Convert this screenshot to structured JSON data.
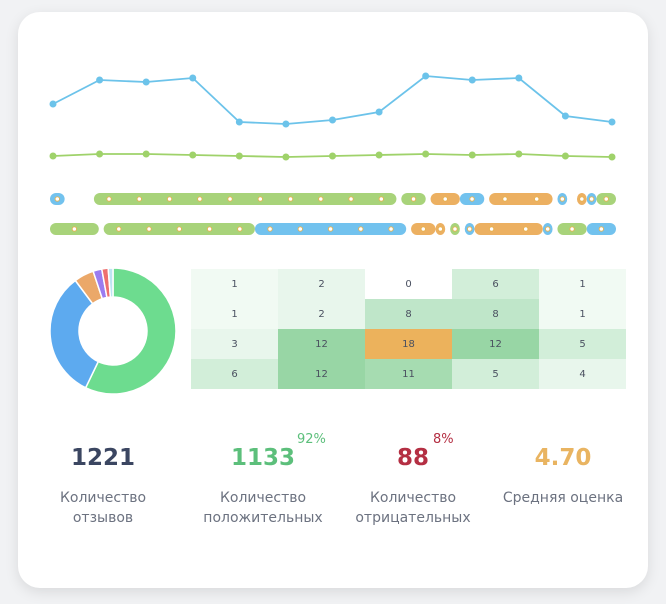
{
  "chart_data": [
    {
      "type": "line",
      "series": [
        {
          "values": [
            5.4,
            6.6,
            6.5,
            6.7,
            4.5,
            4.4,
            4.6,
            5.0,
            6.8,
            6.6,
            6.7,
            4.8,
            4.5
          ],
          "color": "#6cc3ea"
        },
        {
          "values": [
            2.8,
            2.9,
            2.9,
            2.85,
            2.8,
            2.75,
            2.8,
            2.85,
            2.9,
            2.85,
            2.9,
            2.8,
            2.75
          ],
          "color": "#9fd26a"
        }
      ],
      "ylim": [
        0,
        8
      ],
      "grid": false
    },
    {
      "type": "timeline",
      "tracks": [
        {
          "segments": [
            {
              "start": 0,
              "end": 3,
              "kind": "neutral"
            },
            {
              "start": 9,
              "end": 71,
              "kind": "positive"
            },
            {
              "start": 72,
              "end": 77,
              "kind": "positive"
            },
            {
              "start": 78,
              "end": 84,
              "kind": "average"
            },
            {
              "start": 84,
              "end": 89,
              "kind": "neutral"
            },
            {
              "start": 90,
              "end": 103,
              "kind": "average"
            },
            {
              "start": 104,
              "end": 106,
              "kind": "neutral"
            },
            {
              "start": 108,
              "end": 110,
              "kind": "average"
            },
            {
              "start": 110,
              "end": 112,
              "kind": "neutral"
            },
            {
              "start": 112,
              "end": 116,
              "kind": "positive"
            }
          ]
        },
        {
          "segments": [
            {
              "start": 0,
              "end": 10,
              "kind": "positive"
            },
            {
              "start": 11,
              "end": 42,
              "kind": "positive"
            },
            {
              "start": 42,
              "end": 73,
              "kind": "neutral"
            },
            {
              "start": 74,
              "end": 79,
              "kind": "average"
            },
            {
              "start": 79,
              "end": 81,
              "kind": "average"
            },
            {
              "start": 82,
              "end": 84,
              "kind": "positive"
            },
            {
              "start": 85,
              "end": 87,
              "kind": "neutral"
            },
            {
              "start": 87,
              "end": 101,
              "kind": "average"
            },
            {
              "start": 101,
              "end": 103,
              "kind": "neutral"
            },
            {
              "start": 104,
              "end": 110,
              "kind": "positive"
            },
            {
              "start": 110,
              "end": 116,
              "kind": "neutral"
            }
          ]
        }
      ],
      "colors": {
        "positive": "#a8d37a",
        "neutral": "#72c2ee",
        "average": "#ecb061",
        "negative": "#ee6f6f"
      }
    },
    {
      "type": "pie",
      "values": [
        56,
        32,
        5,
        2.2,
        1.6,
        1.2
      ],
      "colors": [
        "#6ddc8f",
        "#5daaef",
        "#eba869",
        "#9b7cf0",
        "#ee6f6f",
        "#bde4f2"
      ]
    },
    {
      "type": "heatmap",
      "values": [
        [
          1,
          2,
          0,
          6,
          1
        ],
        [
          1,
          2,
          8,
          8,
          1
        ],
        [
          3,
          12,
          18,
          12,
          5
        ],
        [
          6,
          12,
          11,
          5,
          4
        ]
      ]
    }
  ],
  "stats": [
    {
      "value": "1221",
      "label": "Количество отзывов",
      "color": "#3b4661"
    },
    {
      "value": "1133",
      "label": "Количество положительных",
      "percent": "92%",
      "color": "#5cbf7b",
      "percent_color": "#5cbf7b"
    },
    {
      "value": "88",
      "label": "Количество отрицательных",
      "percent": "8%",
      "color": "#b42f43",
      "percent_color": "#b42f43"
    },
    {
      "value": "4.70",
      "label": "Средняя оценка",
      "color": "#e9b461"
    }
  ]
}
